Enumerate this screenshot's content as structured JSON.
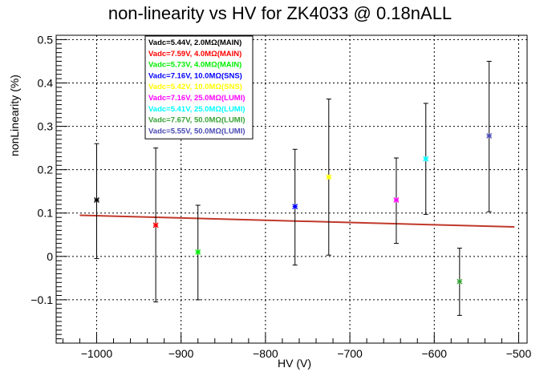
{
  "chart_data": {
    "type": "scatter",
    "title": "non-linearity vs HV for ZK4033 @ 0.18nALL",
    "xlabel": "HV (V)",
    "ylabel": "nonLinearity (%)",
    "xlim": [
      -1048,
      -490
    ],
    "ylim": [
      -0.2,
      0.51
    ],
    "grid": true,
    "legend_position": "top-left",
    "x_ticks": [
      -1000,
      -900,
      -800,
      -700,
      -600,
      -500
    ],
    "x_tick_labels": [
      "−1000",
      "−900",
      "−800",
      "−700",
      "−600",
      "−500"
    ],
    "y_ticks": [
      -0.1,
      0,
      0.1,
      0.2,
      0.3,
      0.4,
      0.5
    ],
    "y_tick_labels": [
      "−0.1",
      "0",
      "0.1",
      "0.2",
      "0.3",
      "0.4",
      "0.5"
    ],
    "series": [
      {
        "name": "Vadc=5.44V, 2.0MΩ(MAIN)",
        "color": "#000000",
        "x": [
          -1000
        ],
        "y": [
          0.13
        ],
        "err_low": [
          0.135
        ],
        "err_high": [
          0.13
        ]
      },
      {
        "name": "Vadc=7.59V, 4.0MΩ(MAIN)",
        "color": "#ff0000",
        "x": [
          -930
        ],
        "y": [
          0.072
        ],
        "err_low": [
          0.177
        ],
        "err_high": [
          0.178
        ]
      },
      {
        "name": "Vadc=5.73V, 4.0MΩ(MAIN)",
        "color": "#00ee00",
        "x": [
          -880
        ],
        "y": [
          0.01
        ],
        "err_low": [
          0.11
        ],
        "err_high": [
          0.108
        ]
      },
      {
        "name": "Vadc=7.16V, 10.0MΩ(SNS)",
        "color": "#0000ff",
        "x": [
          -765
        ],
        "y": [
          0.115
        ],
        "err_low": [
          0.135
        ],
        "err_high": [
          0.132
        ]
      },
      {
        "name": "Vadc=5.42V, 10.0MΩ(SNS)",
        "color": "#ffff00",
        "x": [
          -725
        ],
        "y": [
          0.183
        ],
        "err_low": [
          0.18
        ],
        "err_high": [
          0.18
        ]
      },
      {
        "name": "Vadc=7.16V, 25.0MΩ(LUMI)",
        "color": "#ff00ff",
        "x": [
          -645
        ],
        "y": [
          0.13
        ],
        "err_low": [
          0.1
        ],
        "err_high": [
          0.097
        ]
      },
      {
        "name": "Vadc=5.41V, 25.0MΩ(LUMI)",
        "color": "#00ffff",
        "x": [
          -610
        ],
        "y": [
          0.225
        ],
        "err_low": [
          0.128
        ],
        "err_high": [
          0.128
        ]
      },
      {
        "name": "Vadc=7.67V, 50.0MΩ(LUMI)",
        "color": "#35a335",
        "x": [
          -570
        ],
        "y": [
          -0.058
        ],
        "err_low": [
          0.078
        ],
        "err_high": [
          0.077
        ]
      },
      {
        "name": "Vadc=5.55V, 50.0MΩ(LUMI)",
        "color": "#4a4ab4",
        "x": [
          -535
        ],
        "y": [
          0.278
        ],
        "err_low": [
          0.175
        ],
        "err_high": [
          0.172
        ]
      }
    ],
    "fit_line": {
      "color": "#c0392b",
      "x": [
        -1020,
        -505
      ],
      "y": [
        0.095,
        0.068
      ]
    }
  }
}
